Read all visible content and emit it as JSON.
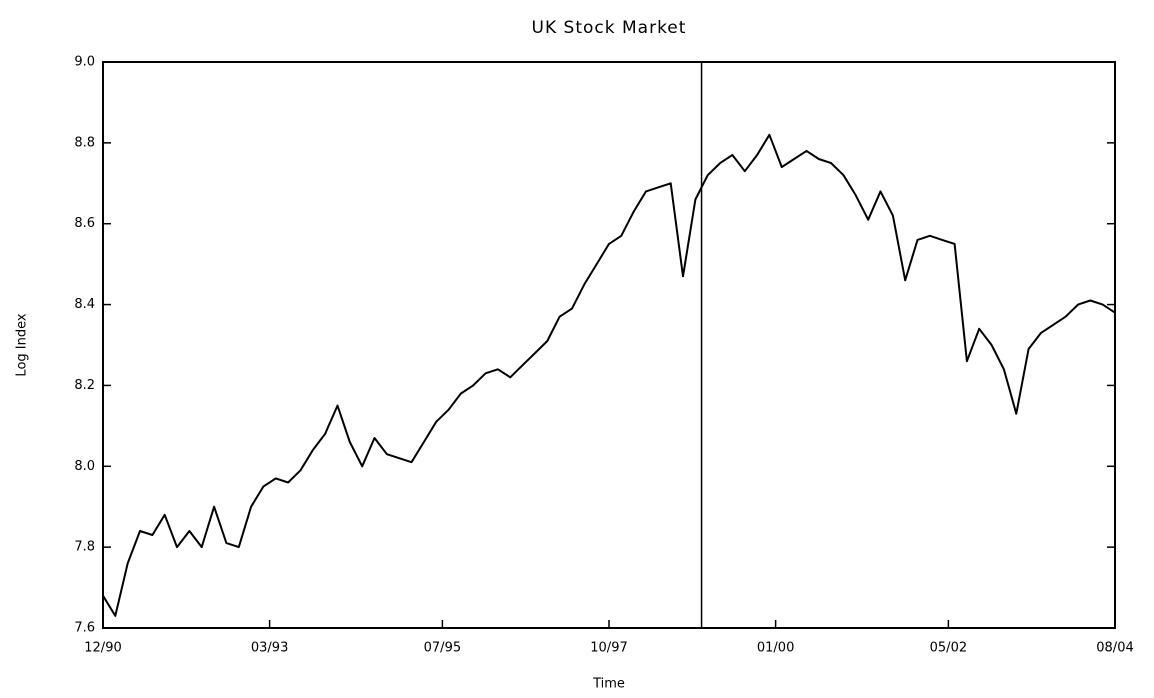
{
  "chart_data": {
    "type": "line",
    "title": "UK Stock Market",
    "x_label": "Time",
    "y_label": "Log Index",
    "color": "#000000",
    "x": [
      "1990-12",
      "1991-02",
      "1991-04",
      "1991-06",
      "1991-08",
      "1991-10",
      "1991-12",
      "1992-02",
      "1992-04",
      "1992-06",
      "1992-08",
      "1992-10",
      "1992-12",
      "1993-02",
      "1993-04",
      "1993-06",
      "1993-08",
      "1993-10",
      "1993-12",
      "1994-02",
      "1994-04",
      "1994-06",
      "1994-08",
      "1994-10",
      "1994-12",
      "1995-02",
      "1995-04",
      "1995-06",
      "1995-08",
      "1995-10",
      "1995-12",
      "1996-02",
      "1996-04",
      "1996-06",
      "1996-08",
      "1996-10",
      "1996-12",
      "1997-02",
      "1997-04",
      "1997-06",
      "1997-08",
      "1997-10",
      "1997-12",
      "1998-02",
      "1998-04",
      "1998-06",
      "1998-08",
      "1998-10",
      "1998-12",
      "1999-02",
      "1999-04",
      "1999-06",
      "1999-08",
      "1999-10",
      "1999-12",
      "2000-02",
      "2000-04",
      "2000-06",
      "2000-08",
      "2000-10",
      "2000-12",
      "2001-02",
      "2001-04",
      "2001-06",
      "2001-08",
      "2001-10",
      "2001-12",
      "2002-02",
      "2002-04",
      "2002-06",
      "2002-08",
      "2002-10",
      "2002-12",
      "2003-02",
      "2003-04",
      "2003-06",
      "2003-08",
      "2003-10",
      "2003-12",
      "2004-02",
      "2004-04",
      "2004-06",
      "2004-08"
    ],
    "values": [
      7.68,
      7.63,
      7.76,
      7.84,
      7.83,
      7.88,
      7.8,
      7.84,
      7.8,
      7.9,
      7.81,
      7.8,
      7.9,
      7.95,
      7.97,
      7.96,
      7.99,
      8.04,
      8.08,
      8.15,
      8.06,
      8.0,
      8.07,
      8.03,
      8.02,
      8.01,
      8.06,
      8.11,
      8.14,
      8.18,
      8.2,
      8.23,
      8.24,
      8.22,
      8.25,
      8.28,
      8.31,
      8.37,
      8.39,
      8.45,
      8.5,
      8.55,
      8.57,
      8.63,
      8.68,
      8.69,
      8.7,
      8.47,
      8.66,
      8.72,
      8.75,
      8.77,
      8.73,
      8.77,
      8.82,
      8.74,
      8.76,
      8.78,
      8.76,
      8.75,
      8.72,
      8.67,
      8.61,
      8.68,
      8.62,
      8.46,
      8.56,
      8.57,
      8.56,
      8.55,
      8.26,
      8.34,
      8.3,
      8.24,
      8.13,
      8.29,
      8.33,
      8.35,
      8.37,
      8.4,
      8.41,
      8.4,
      8.38
    ],
    "vline": "1999-01",
    "xlim": [
      "1990-12",
      "2004-08"
    ],
    "xticks": [
      {
        "value": "1990-12",
        "label": "12/90"
      },
      {
        "value": "1993-03",
        "label": "03/93"
      },
      {
        "value": "1995-07",
        "label": "07/95"
      },
      {
        "value": "1997-10",
        "label": "10/97"
      },
      {
        "value": "2000-01",
        "label": "01/00"
      },
      {
        "value": "2002-05",
        "label": "05/02"
      },
      {
        "value": "2004-08",
        "label": "08/04"
      }
    ],
    "ylim": [
      7.6,
      9.0
    ],
    "yticks": [
      7.6,
      7.8,
      {
        "value": 8,
        "label": "8.0"
      },
      8.2,
      8.4,
      8.6,
      8.8,
      {
        "value": 9,
        "label": "9.0"
      }
    ],
    "grid": false
  }
}
